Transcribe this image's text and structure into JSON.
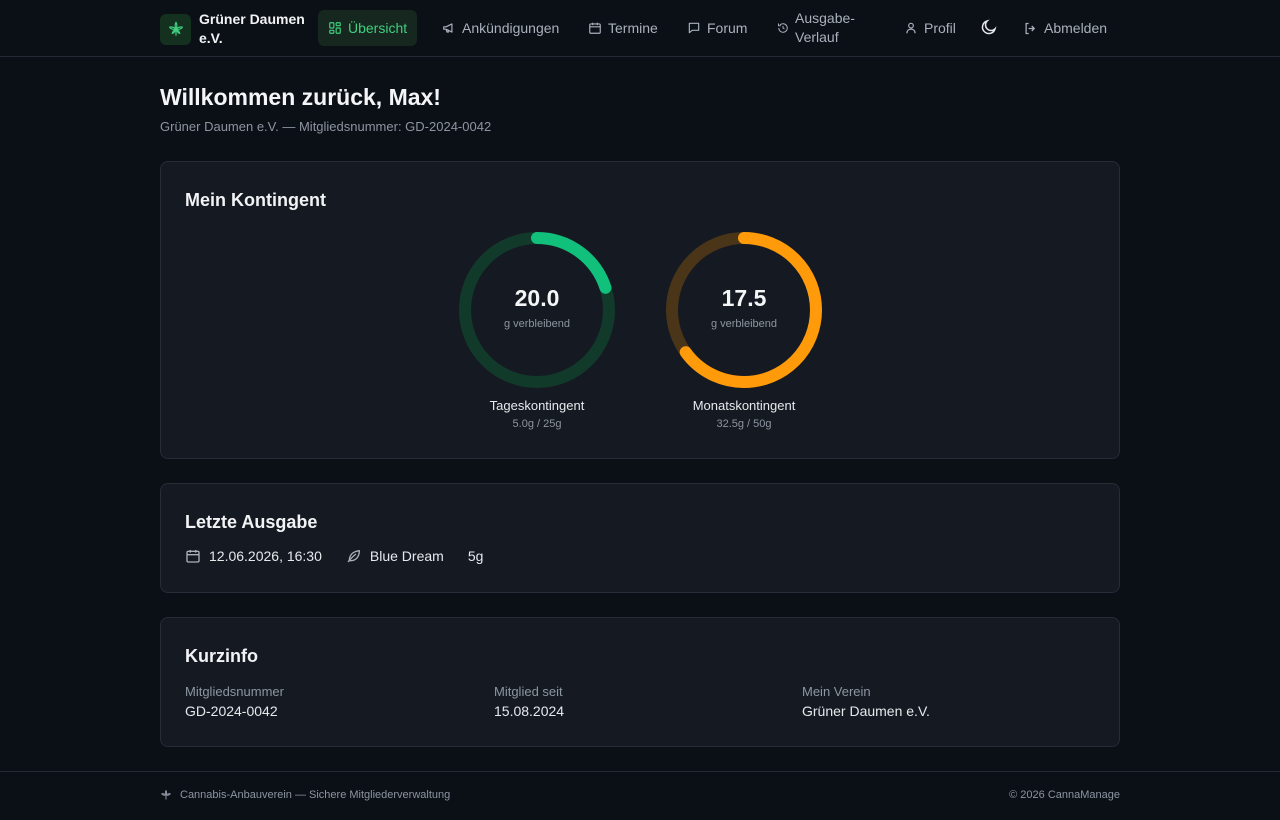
{
  "brand": {
    "name": "Grüner Daumen e.V.",
    "logo_icon": "cannabis-leaf-icon"
  },
  "nav": {
    "items": [
      {
        "label": "Übersicht",
        "icon": "dashboard-icon",
        "active": true
      },
      {
        "label": "Ankündigungen",
        "icon": "megaphone-icon"
      },
      {
        "label": "Termine",
        "icon": "calendar-icon"
      },
      {
        "label": "Forum",
        "icon": "chat-icon"
      },
      {
        "label": "Ausgabe-Verlauf",
        "icon": "history-icon"
      },
      {
        "label": "Profil",
        "icon": "user-icon"
      }
    ],
    "theme_icon": "moon-icon",
    "logout_label": "Abmelden"
  },
  "welcome": {
    "title": "Willkommen zurück, Max!",
    "subtitle": "Grüner Daumen e.V. — Mitgliedsnummer: GD-2024-0042"
  },
  "quota": {
    "title": "Mein Kontingent",
    "daily": {
      "remaining": "20.0",
      "unit": "g verbleibend",
      "label": "Tageskontingent",
      "detail": "5.0g / 25g",
      "used_fraction": 0.2,
      "color": "#10c07b",
      "track_color": "#123a2b"
    },
    "monthly": {
      "remaining": "17.5",
      "unit": "g verbleibend",
      "label": "Monatskontingent",
      "detail": "32.5g / 50g",
      "used_fraction": 0.65,
      "color": "#ff9b0a",
      "track_color": "#4a3518"
    }
  },
  "last_issue": {
    "title": "Letzte Ausgabe",
    "datetime": "12.06.2026, 16:30",
    "strain": "Blue Dream",
    "amount": "5g"
  },
  "info": {
    "title": "Kurzinfo",
    "member_number_label": "Mitgliedsnummer",
    "member_number": "GD-2024-0042",
    "member_since_label": "Mitglied seit",
    "member_since": "15.08.2024",
    "club_label": "Mein Verein",
    "club": "Grüner Daumen e.V."
  },
  "footer": {
    "left": "Cannabis-Anbauverein — Sichere Mitgliederverwaltung",
    "right": "© 2026 CannaManage"
  }
}
